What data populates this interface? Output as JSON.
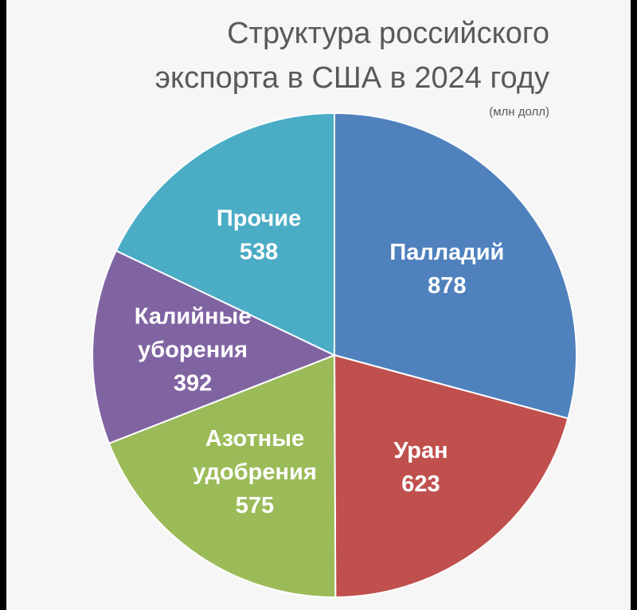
{
  "chart_data": {
    "type": "pie",
    "title_lines": [
      "Структура российского",
      "экспорта в США в 2024 году"
    ],
    "unit_note": "(млн долл)",
    "slices": [
      {
        "name_lines": [
          "Палладий"
        ],
        "value": 878,
        "color": "#4f81bd"
      },
      {
        "name_lines": [
          "Уран"
        ],
        "value": 623,
        "color": "#c0504d"
      },
      {
        "name_lines": [
          "Азотные",
          "удобрения"
        ],
        "value": 575,
        "color": "#9bbb59"
      },
      {
        "name_lines": [
          "Калийные",
          "уборения"
        ],
        "value": 392,
        "color": "#8064a2"
      },
      {
        "name_lines": [
          "Прочие"
        ],
        "value": 538,
        "color": "#4bacc6"
      }
    ]
  }
}
